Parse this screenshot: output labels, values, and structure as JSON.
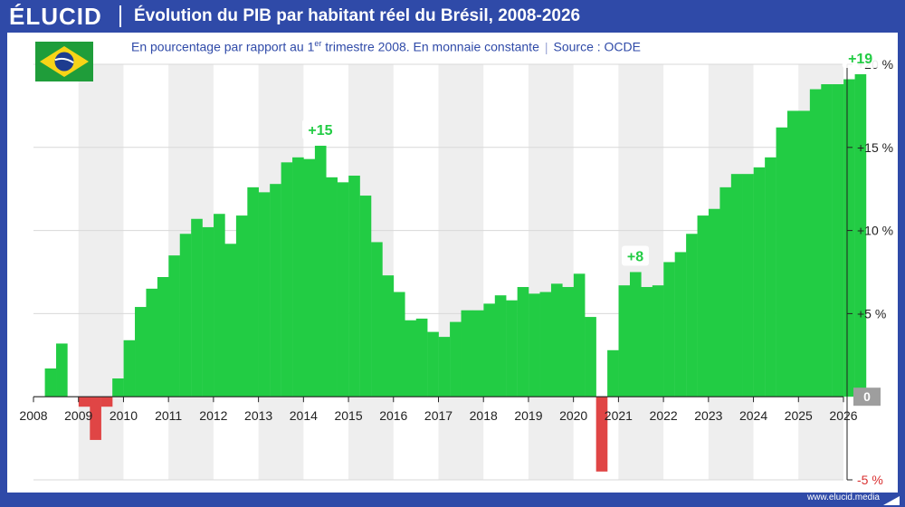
{
  "brand": {
    "logo": "ÉLUCID",
    "website": "www.elucid.media"
  },
  "header": {
    "title": "Évolution du PIB par habitant réel du Brésil, 2008-2026"
  },
  "subtitle": {
    "main_before": "En pourcentage par rapport au 1",
    "main_sup": "er",
    "main_after": " trimestre 2008. En monnaie constante",
    "source": "Source : OCDE"
  },
  "colors": {
    "positive": "#22cc44",
    "negative": "#e04545",
    "negative_label": "#d93030",
    "brand_blue": "#2f4aa8",
    "stripe": "#eeeeee"
  },
  "chart_data": {
    "type": "bar",
    "frequency": "quarterly",
    "start": "2008-Q1",
    "values": [
      0,
      1.7,
      3.2,
      0,
      -0.6,
      -2.6,
      -0.6,
      1.1,
      3.4,
      5.4,
      6.5,
      7.2,
      8.5,
      9.8,
      10.7,
      10.2,
      11,
      9.2,
      10.9,
      12.6,
      12.3,
      12.8,
      14.1,
      14.4,
      14.3,
      15.1,
      13.2,
      12.9,
      13.3,
      12.1,
      9.3,
      7.3,
      6.3,
      4.6,
      4.7,
      3.9,
      3.6,
      4.5,
      5.2,
      5.2,
      5.6,
      6.1,
      5.8,
      6.6,
      6.2,
      6.3,
      6.8,
      6.6,
      7.4,
      4.8,
      -4.5,
      2.8,
      6.7,
      7.5,
      6.6,
      6.7,
      8.1,
      8.7,
      9.8,
      10.9,
      11.3,
      12.6,
      13.4,
      13.4,
      13.8,
      14.4,
      16.2,
      17.2,
      17.2,
      18.5,
      18.8,
      18.8,
      19.1,
      19.4
    ],
    "x_ticks": [
      "2008",
      "2009",
      "2010",
      "2011",
      "2012",
      "2013",
      "2014",
      "2015",
      "2016",
      "2017",
      "2018",
      "2019",
      "2020",
      "2021",
      "2022",
      "2023",
      "2024",
      "2025",
      "2026"
    ],
    "y_ticks": [
      {
        "value": 20,
        "label": "+20 %"
      },
      {
        "value": 15,
        "label": "+15 %"
      },
      {
        "value": 10,
        "label": "+10 %"
      },
      {
        "value": 5,
        "label": "+5 %"
      },
      {
        "value": 0,
        "label": "0"
      },
      {
        "value": -5,
        "label": "-5 %"
      }
    ],
    "ylim": [
      -5,
      20
    ],
    "annotations": [
      {
        "label": "+15",
        "index": 25
      },
      {
        "label": "+8",
        "index": 53
      },
      {
        "label": "+19",
        "index": 73
      }
    ],
    "grid": true,
    "alternating_year_bands": true,
    "y_axis_position": "right"
  }
}
